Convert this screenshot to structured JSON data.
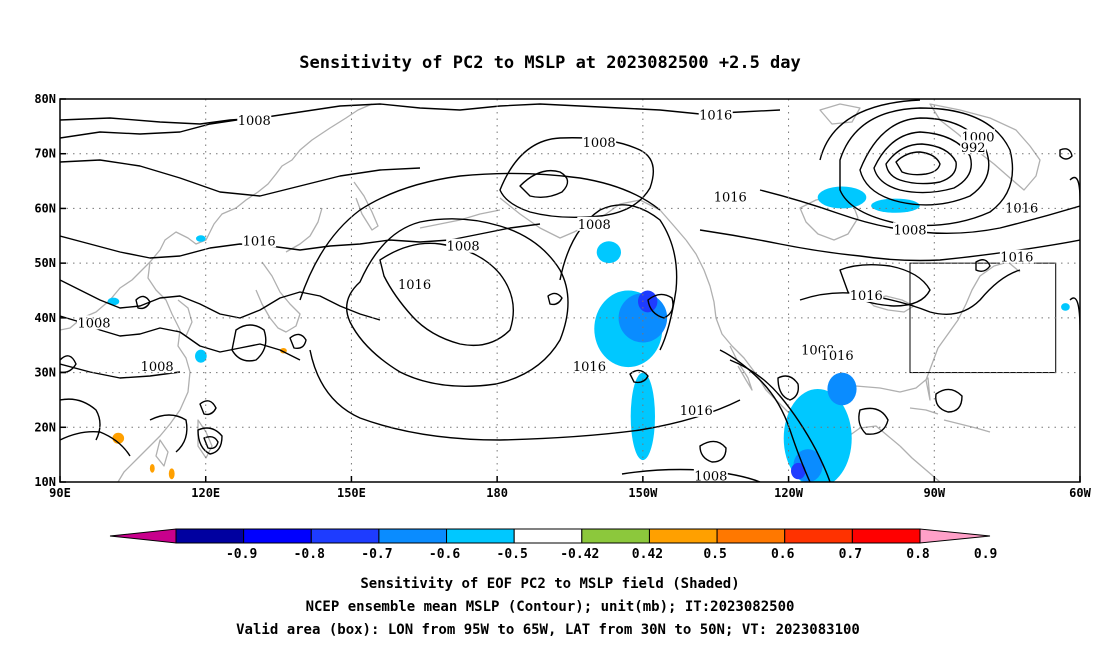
{
  "title": "Sensitivity of PC2 to MSLP at 2023082500 +2.5 day",
  "map": {
    "lon_range": [
      90,
      300
    ],
    "lat_range": [
      10,
      80
    ],
    "lat_ticks": [
      {
        "value": 80,
        "label": "80N"
      },
      {
        "value": 70,
        "label": "70N"
      },
      {
        "value": 60,
        "label": "60N"
      },
      {
        "value": 50,
        "label": "50N"
      },
      {
        "value": 40,
        "label": "40N"
      },
      {
        "value": 30,
        "label": "30N"
      },
      {
        "value": 20,
        "label": "20N"
      },
      {
        "value": 10,
        "label": "10N"
      }
    ],
    "lon_ticks": [
      {
        "value": 90,
        "label": "90E"
      },
      {
        "value": 120,
        "label": "120E"
      },
      {
        "value": 150,
        "label": "150E"
      },
      {
        "value": 180,
        "label": "180"
      },
      {
        "value": 210,
        "label": "150W"
      },
      {
        "value": 240,
        "label": "120W"
      },
      {
        "value": 270,
        "label": "90W"
      },
      {
        "value": 300,
        "label": "60W"
      }
    ],
    "valid_box": {
      "lon": [
        265,
        295
      ],
      "lat": [
        30,
        50
      ]
    },
    "contour_labels": [
      {
        "text": "1008",
        "lon": 130,
        "lat": 76
      },
      {
        "text": "1016",
        "lon": 225,
        "lat": 77
      },
      {
        "text": "1008",
        "lon": 201,
        "lat": 72
      },
      {
        "text": "1000",
        "lon": 279,
        "lat": 73
      },
      {
        "text": "992",
        "lon": 278,
        "lat": 71
      },
      {
        "text": "1016",
        "lon": 228,
        "lat": 62
      },
      {
        "text": "1008",
        "lon": 200,
        "lat": 57
      },
      {
        "text": "1016",
        "lon": 131,
        "lat": 54
      },
      {
        "text": "1008",
        "lon": 173,
        "lat": 53
      },
      {
        "text": "1016",
        "lon": 163,
        "lat": 46
      },
      {
        "text": "1016",
        "lon": 288,
        "lat": 60
      },
      {
        "text": "1008",
        "lon": 265,
        "lat": 56
      },
      {
        "text": "1016",
        "lon": 287,
        "lat": 51
      },
      {
        "text": "1016",
        "lon": 256,
        "lat": 44
      },
      {
        "text": "1008",
        "lon": 97,
        "lat": 39
      },
      {
        "text": "1008",
        "lon": 110,
        "lat": 31
      },
      {
        "text": "1016",
        "lon": 199,
        "lat": 31
      },
      {
        "text": "1008",
        "lon": 246,
        "lat": 34
      },
      {
        "text": "1016",
        "lon": 250,
        "lat": 33
      },
      {
        "text": "1016",
        "lon": 221,
        "lat": 23
      },
      {
        "text": "1008",
        "lon": 224,
        "lat": 11
      }
    ],
    "shaded_regions": [
      {
        "level": -0.5,
        "lon": 207,
        "lat": 38,
        "rlon": 7,
        "rlat": 7
      },
      {
        "level": -0.5,
        "lon": 210,
        "lat": 22,
        "rlon": 2.5,
        "rlat": 8
      },
      {
        "level": -0.6,
        "lon": 210,
        "lat": 40,
        "rlon": 5,
        "rlat": 4.5
      },
      {
        "level": -0.7,
        "lon": 211,
        "lat": 43,
        "rlon": 2,
        "rlat": 2
      },
      {
        "level": -0.5,
        "lon": 203,
        "lat": 52,
        "rlon": 2.5,
        "rlat": 2
      },
      {
        "level": -0.5,
        "lon": 251,
        "lat": 62,
        "rlon": 5,
        "rlat": 2
      },
      {
        "level": -0.5,
        "lon": 262,
        "lat": 60.5,
        "rlon": 5,
        "rlat": 1.3
      },
      {
        "level": -0.5,
        "lon": 246,
        "lat": 18,
        "rlon": 7,
        "rlat": 9
      },
      {
        "level": -0.6,
        "lon": 244,
        "lat": 13,
        "rlon": 3,
        "rlat": 3
      },
      {
        "level": -0.6,
        "lon": 251,
        "lat": 27,
        "rlon": 3,
        "rlat": 3
      },
      {
        "level": -0.7,
        "lon": 242,
        "lat": 12,
        "rlon": 1.5,
        "rlat": 1.5
      },
      {
        "level": -0.5,
        "lon": 119,
        "lat": 33,
        "rlon": 1.2,
        "rlat": 1.2
      },
      {
        "level": -0.5,
        "lon": 101,
        "lat": 43,
        "rlon": 1.2,
        "rlat": 0.7
      },
      {
        "level": -0.5,
        "lon": 119,
        "lat": 54.5,
        "rlon": 1,
        "rlat": 0.6
      },
      {
        "level": -0.5,
        "lon": 297,
        "lat": 42,
        "rlon": 0.9,
        "rlat": 0.7
      },
      {
        "level": 0.5,
        "lon": 102,
        "lat": 18,
        "rlon": 1.2,
        "rlat": 1
      },
      {
        "level": 0.5,
        "lon": 136,
        "lat": 34,
        "rlon": 0.7,
        "rlat": 0.5
      },
      {
        "level": 0.5,
        "lon": 113,
        "lat": 11.5,
        "rlon": 0.6,
        "rlat": 1
      },
      {
        "level": 0.5,
        "lon": 109,
        "lat": 12.5,
        "rlon": 0.5,
        "rlat": 0.8
      }
    ]
  },
  "colorbar": {
    "under_color": "#c8008c",
    "over_color": "#ffa0c8",
    "bins": [
      {
        "color": "#0000a0"
      },
      {
        "color": "#0000ff"
      },
      {
        "color": "#1e3cff"
      },
      {
        "color": "#0a8cff"
      },
      {
        "color": "#00c8ff"
      },
      {
        "color": "#ffffff"
      },
      {
        "color": "#8cc83c"
      },
      {
        "color": "#ffa000"
      },
      {
        "color": "#ff7800"
      },
      {
        "color": "#ff3200"
      },
      {
        "color": "#ff0000"
      }
    ],
    "labels": [
      "-0.9",
      "-0.8",
      "-0.7",
      "-0.6",
      "-0.5",
      "-0.42",
      "0.42",
      "0.5",
      "0.6",
      "0.7",
      "0.8",
      "0.9"
    ]
  },
  "captions": [
    "Sensitivity of EOF PC2 to MSLP field (Shaded)",
    "NCEP ensemble mean MSLP (Contour); unit(mb); IT:2023082500",
    "Valid area (box): LON from 95W to 65W, LAT from 30N to 50N; VT: 2023083100"
  ]
}
